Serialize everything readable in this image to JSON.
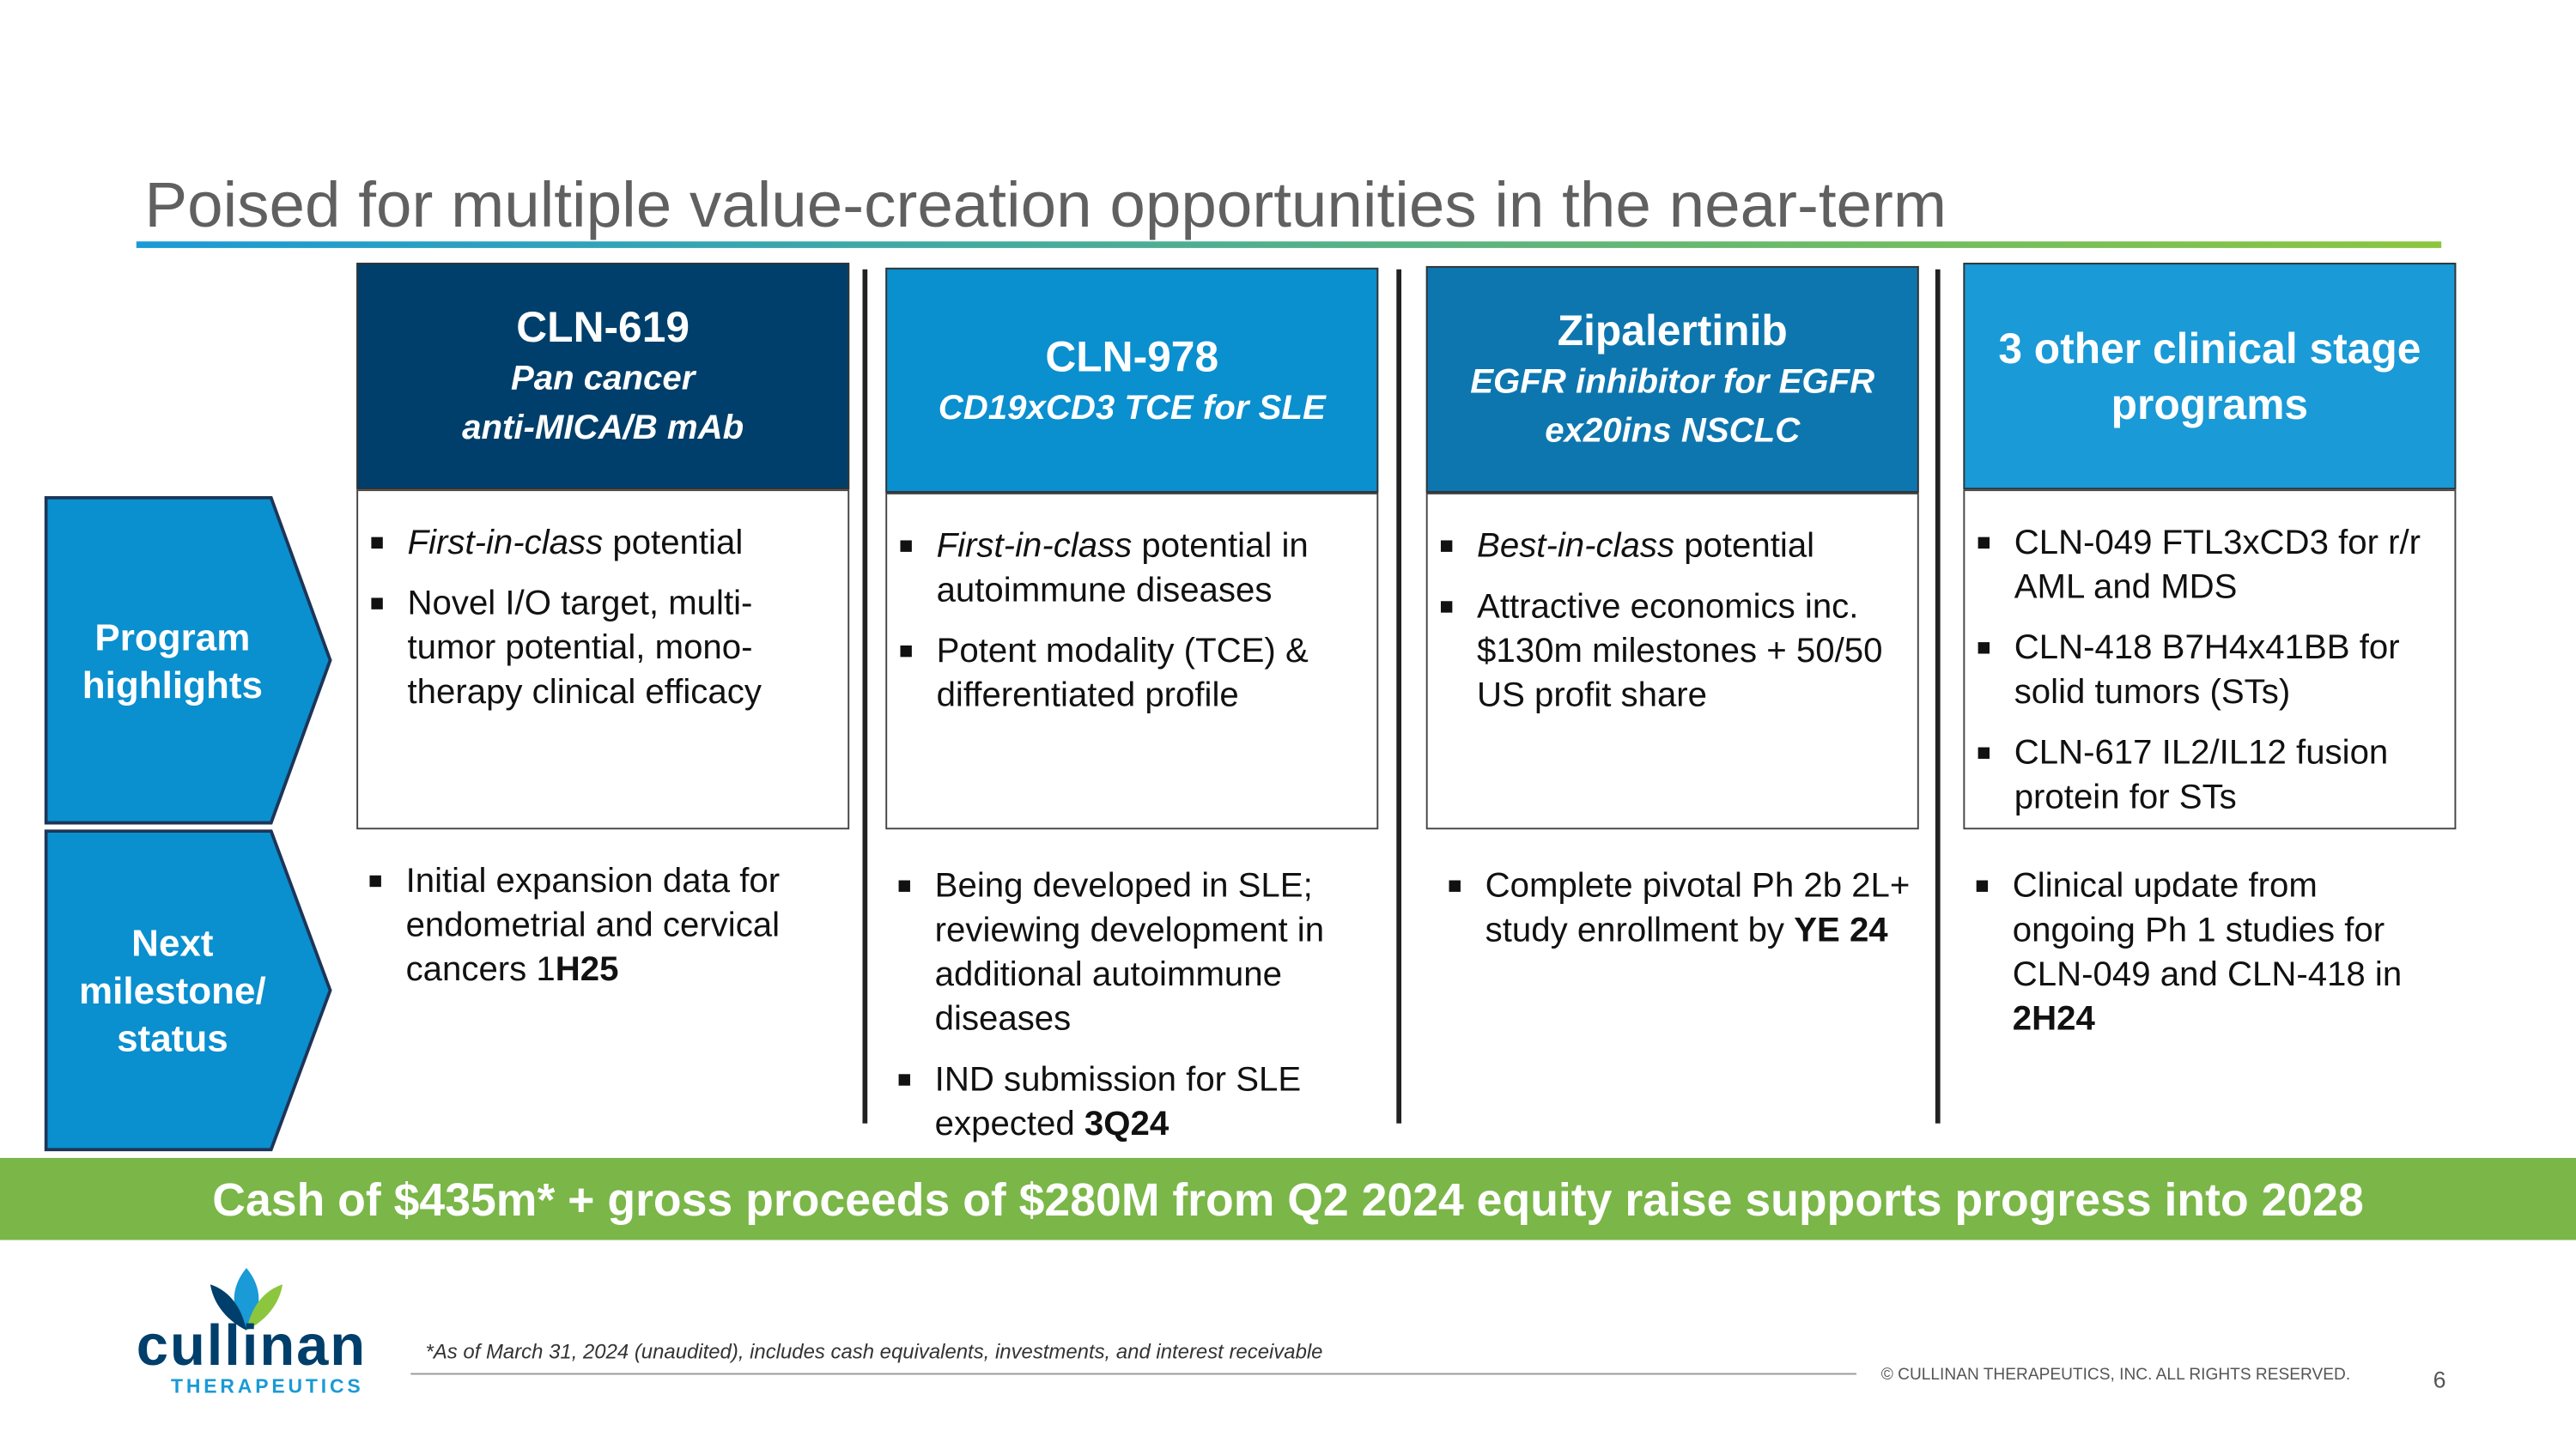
{
  "title": "Poised for multiple value-creation opportunities in the near-term",
  "row_labels": [
    "Program highlights",
    "Next milestone/ status"
  ],
  "columns": [
    {
      "name": "CLN-619",
      "subtitle": [
        "Pan cancer",
        "anti-MICA/B mAb"
      ],
      "color": "#003f6b",
      "highlights": [
        [
          {
            "t": "First-in-class",
            "f": "i"
          },
          {
            "t": " potential"
          }
        ],
        [
          {
            "t": "Novel I/O target, multi-tumor potential, mono-therapy clinical efficacy"
          }
        ]
      ],
      "milestones": [
        [
          {
            "t": "Initial expansion data for endometrial and cervical cancers 1"
          },
          {
            "t": "H25",
            "f": "b"
          }
        ]
      ]
    },
    {
      "name": "CLN-978",
      "subtitle": [
        "CD19xCD3 TCE for SLE"
      ],
      "color": "#0a8fcf",
      "highlights": [
        [
          {
            "t": "First-in-class",
            "f": "i"
          },
          {
            "t": " potential in autoimmune diseases"
          }
        ],
        [
          {
            "t": "Potent modality (TCE) & differentiated profile"
          }
        ]
      ],
      "milestones": [
        [
          {
            "t": "Being developed in SLE; reviewing development in additional autoimmune diseases"
          }
        ],
        [
          {
            "t": "IND submission for SLE expected "
          },
          {
            "t": "3Q24",
            "f": "b"
          }
        ]
      ]
    },
    {
      "name": "Zipalertinib",
      "subtitle": [
        "EGFR inhibitor for EGFR",
        "ex20ins NSCLC"
      ],
      "color": "#0d76ae",
      "highlights": [
        [
          {
            "t": "Best-in-class",
            "f": "i"
          },
          {
            "t": " potential"
          }
        ],
        [
          {
            "t": "Attractive economics inc. $130m milestones + 50/50 US profit share"
          }
        ]
      ],
      "milestones": [
        [
          {
            "t": "Complete pivotal Ph 2b 2L+ study enrollment by "
          },
          {
            "t": "YE 24",
            "f": "b"
          }
        ]
      ]
    },
    {
      "name": "3 other clinical stage programs",
      "subtitle": [],
      "color": "#1a9ad6",
      "highlights": [
        [
          {
            "t": "CLN-049 FTL3xCD3 for r/r AML and MDS"
          }
        ],
        [
          {
            "t": "CLN-418 B7H4x41BB for solid tumors (STs)"
          }
        ],
        [
          {
            "t": "CLN-617 IL2/IL12 fusion protein for STs"
          }
        ]
      ],
      "milestones": [
        [
          {
            "t": "Clinical update from ongoing Ph 1 studies for CLN-049 and CLN-418 in "
          },
          {
            "t": "2H24",
            "f": "b"
          }
        ]
      ]
    }
  ],
  "banner": "Cash of $435m* + gross proceeds of $280M from Q2 2024 equity raise supports progress into 2028",
  "footnote": "*As of March 31, 2024 (unaudited), includes cash equivalents, investments, and interest receivable",
  "logo": {
    "name": "cullinan",
    "sub": "THERAPEUTICS"
  },
  "copyright": "© CULLINAN THERAPEUTICS, INC. ALL RIGHTS RESERVED.",
  "page": 6
}
